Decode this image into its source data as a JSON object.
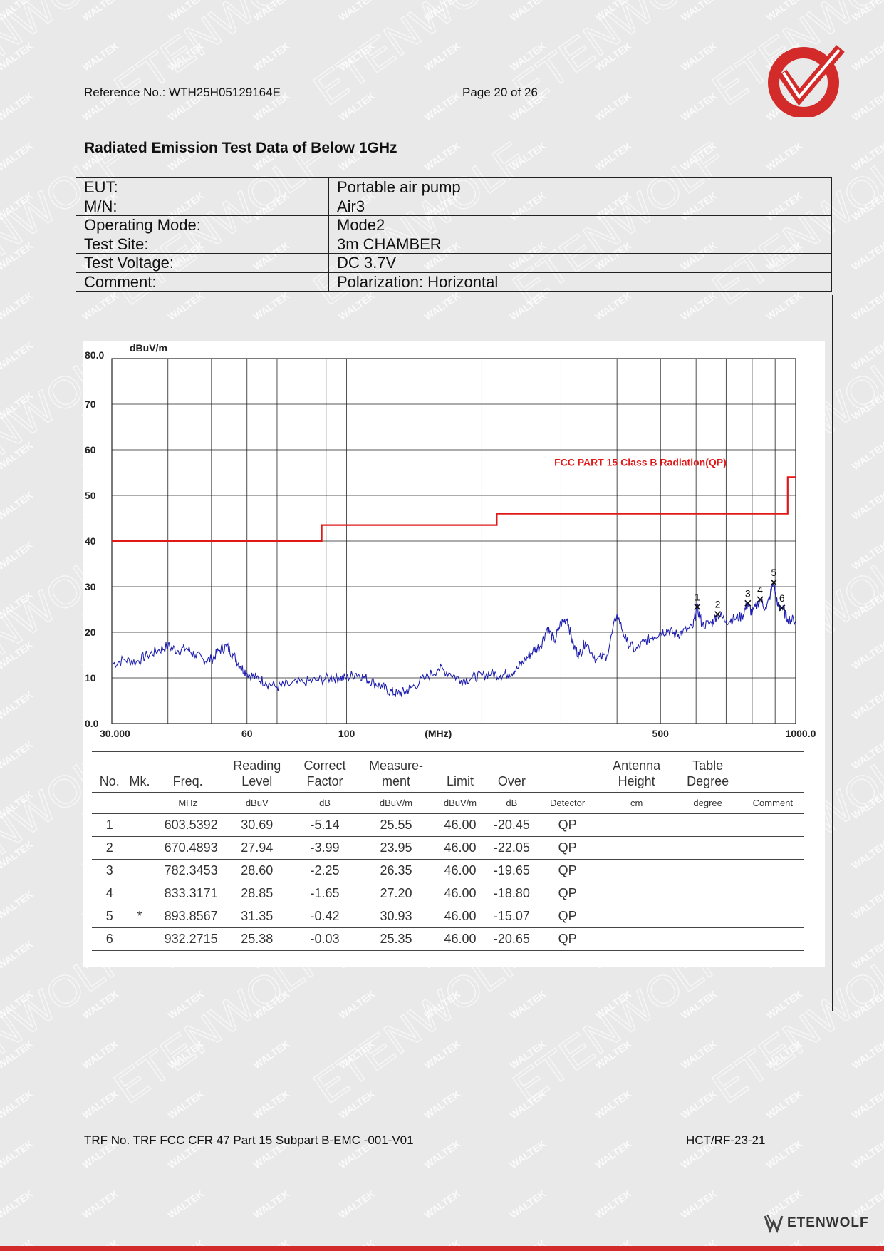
{
  "header": {
    "reference": "Reference No.: WTH25H05129164E",
    "page": "Page 20 of 26"
  },
  "watermark": {
    "small": "WALTEK",
    "large": "ETENWOLF"
  },
  "title": "Radiated Emission Test Data of Below 1GHz",
  "info": [
    {
      "label": "EUT:",
      "value": "Portable air pump"
    },
    {
      "label": "M/N:",
      "value": "Air3"
    },
    {
      "label": "Operating Mode:",
      "value": "Mode2"
    },
    {
      "label": "Test Site:",
      "value": "3m CHAMBER"
    },
    {
      "label": "Test Voltage:",
      "value": "DC 3.7V"
    },
    {
      "label": "Comment:",
      "value": "Polarization: Horizontal"
    }
  ],
  "chart_data": {
    "type": "line",
    "title": "",
    "ylabel": "dBuV/m",
    "xlabel": "(MHz)",
    "x_scale": "log",
    "xlim": [
      30,
      1000
    ],
    "ylim": [
      0,
      80
    ],
    "y_ticks": [
      "80.0",
      "70",
      "60",
      "50",
      "40",
      "30",
      "20",
      "10",
      "0.0"
    ],
    "x_ticks": [
      "30.000",
      "60",
      "100",
      "(MHz)",
      "500",
      "1000.0"
    ],
    "grid": true,
    "limit_label": "FCC PART 15 Class B Radiation(QP)",
    "colors": {
      "trace": "#1f1fb0",
      "limit": "#e01818",
      "grid": "#222222"
    },
    "series": [
      {
        "name": "FCC PART 15 Class B Radiation(QP)",
        "points": [
          [
            30,
            40
          ],
          [
            88,
            40
          ],
          [
            88,
            43.5
          ],
          [
            216,
            43.5
          ],
          [
            216,
            46
          ],
          [
            960,
            46
          ],
          [
            960,
            54
          ],
          [
            1000,
            54
          ]
        ]
      },
      {
        "points": [
          [
            30,
            13
          ],
          [
            32,
            14
          ],
          [
            34,
            13.5
          ],
          [
            36,
            15
          ],
          [
            38,
            16
          ],
          [
            40,
            17
          ],
          [
            42,
            16
          ],
          [
            44,
            16.5
          ],
          [
            46,
            15
          ],
          [
            48,
            14
          ],
          [
            50,
            14
          ],
          [
            52,
            16
          ],
          [
            54,
            17
          ],
          [
            56,
            15
          ],
          [
            58,
            12.5
          ],
          [
            60,
            11
          ],
          [
            63,
            10
          ],
          [
            66,
            9
          ],
          [
            70,
            8
          ],
          [
            74,
            8.5
          ],
          [
            80,
            9
          ],
          [
            86,
            9.5
          ],
          [
            92,
            10
          ],
          [
            96,
            10
          ],
          [
            100,
            10
          ],
          [
            105,
            11
          ],
          [
            110,
            10
          ],
          [
            115,
            9
          ],
          [
            120,
            8
          ],
          [
            125,
            7
          ],
          [
            130,
            6.5
          ],
          [
            135,
            7
          ],
          [
            140,
            8
          ],
          [
            150,
            10
          ],
          [
            160,
            12
          ],
          [
            170,
            11
          ],
          [
            180,
            9.5
          ],
          [
            190,
            10
          ],
          [
            200,
            10.5
          ],
          [
            210,
            11
          ],
          [
            220,
            10.5
          ],
          [
            230,
            11
          ],
          [
            240,
            12
          ],
          [
            250,
            14
          ],
          [
            260,
            16
          ],
          [
            270,
            17
          ],
          [
            280,
            21
          ],
          [
            290,
            18
          ],
          [
            300,
            22
          ],
          [
            310,
            23
          ],
          [
            320,
            17
          ],
          [
            330,
            15
          ],
          [
            340,
            18
          ],
          [
            360,
            14
          ],
          [
            380,
            15
          ],
          [
            400,
            24
          ],
          [
            420,
            18
          ],
          [
            440,
            16
          ],
          [
            460,
            18
          ],
          [
            480,
            19
          ],
          [
            500,
            20
          ],
          [
            520,
            20.5
          ],
          [
            540,
            19.5
          ],
          [
            560,
            20
          ],
          [
            590,
            21
          ],
          [
            603,
            25.5
          ],
          [
            620,
            21.5
          ],
          [
            650,
            22
          ],
          [
            670,
            24
          ],
          [
            700,
            22.5
          ],
          [
            730,
            23
          ],
          [
            760,
            23.5
          ],
          [
            782,
            26.3
          ],
          [
            800,
            24
          ],
          [
            833,
            27.2
          ],
          [
            860,
            25
          ],
          [
            893,
            30.9
          ],
          [
            910,
            26
          ],
          [
            932,
            25.3
          ],
          [
            960,
            23
          ],
          [
            1000,
            22.5
          ]
        ]
      }
    ],
    "markers": [
      {
        "no": "1",
        "freq": 603.5392,
        "level": 25.55
      },
      {
        "no": "2",
        "freq": 670.4893,
        "level": 23.95
      },
      {
        "no": "3",
        "freq": 782.3453,
        "level": 26.35
      },
      {
        "no": "4",
        "freq": 833.3171,
        "level": 27.2
      },
      {
        "no": "5",
        "freq": 893.8567,
        "level": 30.93
      },
      {
        "no": "6",
        "freq": 932.2715,
        "level": 25.35
      }
    ]
  },
  "table": {
    "headers": [
      "No.",
      "Mk.",
      "Freq.",
      "Reading Level",
      "Correct Factor",
      "Measure- ment",
      "Limit",
      "Over",
      "",
      "Antenna Height",
      "Table Degree",
      ""
    ],
    "units": [
      "",
      "",
      "MHz",
      "dBuV",
      "dB",
      "dBuV/m",
      "dBuV/m",
      "dB",
      "Detector",
      "cm",
      "degree",
      "Comment"
    ],
    "rows": [
      [
        "1",
        "",
        "603.5392",
        "30.69",
        "-5.14",
        "25.55",
        "46.00",
        "-20.45",
        "QP",
        "",
        "",
        ""
      ],
      [
        "2",
        "",
        "670.4893",
        "27.94",
        "-3.99",
        "23.95",
        "46.00",
        "-22.05",
        "QP",
        "",
        "",
        ""
      ],
      [
        "3",
        "",
        "782.3453",
        "28.60",
        "-2.25",
        "26.35",
        "46.00",
        "-19.65",
        "QP",
        "",
        "",
        ""
      ],
      [
        "4",
        "",
        "833.3171",
        "28.85",
        "-1.65",
        "27.20",
        "46.00",
        "-18.80",
        "QP",
        "",
        "",
        ""
      ],
      [
        "5",
        "*",
        "893.8567",
        "31.35",
        "-0.42",
        "30.93",
        "46.00",
        "-15.07",
        "QP",
        "",
        "",
        ""
      ],
      [
        "6",
        "",
        "932.2715",
        "25.38",
        "-0.03",
        "25.35",
        "46.00",
        "-20.65",
        "QP",
        "",
        "",
        ""
      ]
    ]
  },
  "footer": {
    "trf": "TRF No. TRF FCC CFR 47 Part 15 Subpart B-EMC -001-V01",
    "code": "HCT/RF-23-21",
    "brand": "ETENWOLF"
  }
}
